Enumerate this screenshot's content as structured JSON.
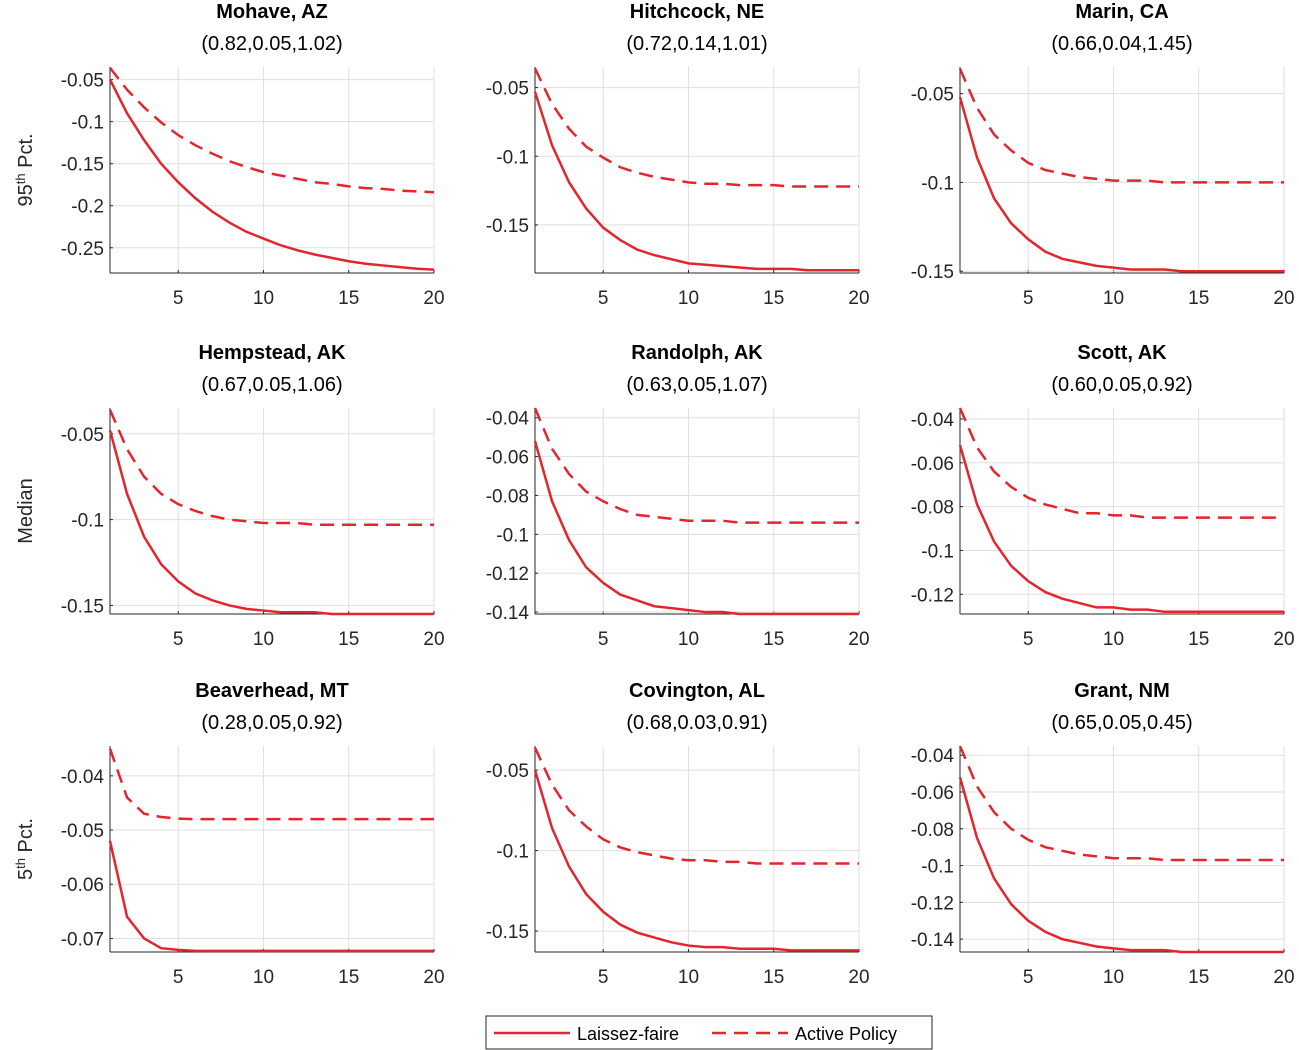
{
  "chart_data": [
    {
      "type": "line",
      "title": "Mohave, AZ",
      "subtitle": "(0.82,0.05,1.02)",
      "ylabel": [
        "95",
        "th",
        " Pct."
      ],
      "x": [
        1,
        2,
        3,
        4,
        5,
        6,
        7,
        8,
        9,
        10,
        11,
        12,
        13,
        14,
        15,
        16,
        17,
        18,
        19,
        20
      ],
      "xlim": [
        1,
        20
      ],
      "xticks": [
        5,
        10,
        15,
        20
      ],
      "ylim": [
        -0.28,
        -0.035
      ],
      "yticks": [
        -0.25,
        -0.2,
        -0.15,
        -0.1,
        -0.05
      ],
      "grid": true,
      "series": [
        {
          "color": "#e3262d",
          "line_style": "solid",
          "values": [
            -0.05,
            -0.09,
            -0.122,
            -0.15,
            -0.172,
            -0.191,
            -0.207,
            -0.22,
            -0.231,
            -0.239,
            -0.247,
            -0.253,
            -0.258,
            -0.262,
            -0.266,
            -0.269,
            -0.271,
            -0.273,
            -0.275,
            -0.276
          ]
        },
        {
          "color": "#e3262d",
          "line_style": "dashed",
          "values": [
            -0.036,
            -0.062,
            -0.083,
            -0.101,
            -0.116,
            -0.128,
            -0.138,
            -0.147,
            -0.154,
            -0.16,
            -0.164,
            -0.168,
            -0.172,
            -0.174,
            -0.177,
            -0.179,
            -0.18,
            -0.182,
            -0.183,
            -0.184
          ]
        }
      ]
    },
    {
      "type": "line",
      "title": "Hitchcock, NE",
      "subtitle": "(0.72,0.14,1.01)",
      "x": [
        1,
        2,
        3,
        4,
        5,
        6,
        7,
        8,
        9,
        10,
        11,
        12,
        13,
        14,
        15,
        16,
        17,
        18,
        19,
        20
      ],
      "xlim": [
        1,
        20
      ],
      "xticks": [
        5,
        10,
        15,
        20
      ],
      "ylim": [
        -0.185,
        -0.035
      ],
      "yticks": [
        -0.15,
        -0.1,
        -0.05
      ],
      "grid": true,
      "series": [
        {
          "color": "#e3262d",
          "line_style": "solid",
          "values": [
            -0.053,
            -0.092,
            -0.119,
            -0.138,
            -0.152,
            -0.161,
            -0.168,
            -0.172,
            -0.175,
            -0.178,
            -0.179,
            -0.18,
            -0.181,
            -0.182,
            -0.182,
            -0.182,
            -0.183,
            -0.183,
            -0.183,
            -0.183
          ]
        },
        {
          "color": "#e3262d",
          "line_style": "dashed",
          "values": [
            -0.036,
            -0.062,
            -0.08,
            -0.093,
            -0.101,
            -0.108,
            -0.112,
            -0.115,
            -0.117,
            -0.119,
            -0.12,
            -0.12,
            -0.121,
            -0.121,
            -0.121,
            -0.122,
            -0.122,
            -0.122,
            -0.122,
            -0.122
          ]
        }
      ]
    },
    {
      "type": "line",
      "title": "Marin, CA",
      "subtitle": "(0.66,0.04,1.45)",
      "x": [
        1,
        2,
        3,
        4,
        5,
        6,
        7,
        8,
        9,
        10,
        11,
        12,
        13,
        14,
        15,
        16,
        17,
        18,
        19,
        20
      ],
      "xlim": [
        1,
        20
      ],
      "xticks": [
        5,
        10,
        15,
        20
      ],
      "ylim": [
        -0.151,
        -0.035
      ],
      "yticks": [
        -0.15,
        -0.1,
        -0.05
      ],
      "grid": true,
      "series": [
        {
          "color": "#e3262d",
          "line_style": "solid",
          "values": [
            -0.052,
            -0.086,
            -0.109,
            -0.123,
            -0.132,
            -0.139,
            -0.143,
            -0.145,
            -0.147,
            -0.148,
            -0.149,
            -0.149,
            -0.149,
            -0.15,
            -0.15,
            -0.15,
            -0.15,
            -0.15,
            -0.15,
            -0.15
          ]
        },
        {
          "color": "#e3262d",
          "line_style": "dashed",
          "values": [
            -0.036,
            -0.058,
            -0.073,
            -0.082,
            -0.089,
            -0.093,
            -0.095,
            -0.097,
            -0.098,
            -0.099,
            -0.099,
            -0.099,
            -0.1,
            -0.1,
            -0.1,
            -0.1,
            -0.1,
            -0.1,
            -0.1,
            -0.1
          ]
        }
      ]
    },
    {
      "type": "line",
      "title": "Hempstead, AK",
      "subtitle": "(0.67,0.05,1.06)",
      "ylabel": [
        "Median"
      ],
      "x": [
        1,
        2,
        3,
        4,
        5,
        6,
        7,
        8,
        9,
        10,
        11,
        12,
        13,
        14,
        15,
        16,
        17,
        18,
        19,
        20
      ],
      "xlim": [
        1,
        20
      ],
      "xticks": [
        5,
        10,
        15,
        20
      ],
      "ylim": [
        -0.155,
        -0.035
      ],
      "yticks": [
        -0.15,
        -0.1,
        -0.05
      ],
      "grid": true,
      "series": [
        {
          "color": "#e3262d",
          "line_style": "solid",
          "values": [
            -0.048,
            -0.085,
            -0.11,
            -0.126,
            -0.136,
            -0.143,
            -0.147,
            -0.15,
            -0.152,
            -0.153,
            -0.154,
            -0.154,
            -0.154,
            -0.155,
            -0.155,
            -0.155,
            -0.155,
            -0.155,
            -0.155,
            -0.155
          ]
        },
        {
          "color": "#e3262d",
          "line_style": "dashed",
          "values": [
            -0.036,
            -0.059,
            -0.075,
            -0.085,
            -0.091,
            -0.095,
            -0.098,
            -0.1,
            -0.101,
            -0.102,
            -0.102,
            -0.102,
            -0.103,
            -0.103,
            -0.103,
            -0.103,
            -0.103,
            -0.103,
            -0.103,
            -0.103
          ]
        }
      ]
    },
    {
      "type": "line",
      "title": "Randolph, AK",
      "subtitle": "(0.63,0.05,1.07)",
      "x": [
        1,
        2,
        3,
        4,
        5,
        6,
        7,
        8,
        9,
        10,
        11,
        12,
        13,
        14,
        15,
        16,
        17,
        18,
        19,
        20
      ],
      "xlim": [
        1,
        20
      ],
      "xticks": [
        5,
        10,
        15,
        20
      ],
      "ylim": [
        -0.141,
        -0.035
      ],
      "yticks": [
        -0.14,
        -0.12,
        -0.1,
        -0.08,
        -0.06,
        -0.04
      ],
      "grid": true,
      "series": [
        {
          "color": "#e3262d",
          "line_style": "solid",
          "values": [
            -0.052,
            -0.083,
            -0.103,
            -0.117,
            -0.125,
            -0.131,
            -0.134,
            -0.137,
            -0.138,
            -0.139,
            -0.14,
            -0.14,
            -0.141,
            -0.141,
            -0.141,
            -0.141,
            -0.141,
            -0.141,
            -0.141,
            -0.141
          ]
        },
        {
          "color": "#e3262d",
          "line_style": "dashed",
          "values": [
            -0.035,
            -0.056,
            -0.069,
            -0.078,
            -0.083,
            -0.087,
            -0.09,
            -0.091,
            -0.092,
            -0.093,
            -0.093,
            -0.093,
            -0.094,
            -0.094,
            -0.094,
            -0.094,
            -0.094,
            -0.094,
            -0.094,
            -0.094
          ]
        }
      ]
    },
    {
      "type": "line",
      "title": "Scott, AK",
      "subtitle": "(0.60,0.05,0.92)",
      "x": [
        1,
        2,
        3,
        4,
        5,
        6,
        7,
        8,
        9,
        10,
        11,
        12,
        13,
        14,
        15,
        16,
        17,
        18,
        19,
        20
      ],
      "xlim": [
        1,
        20
      ],
      "xticks": [
        5,
        10,
        15,
        20
      ],
      "ylim": [
        -0.129,
        -0.035
      ],
      "yticks": [
        -0.12,
        -0.1,
        -0.08,
        -0.06,
        -0.04
      ],
      "grid": true,
      "series": [
        {
          "color": "#e3262d",
          "line_style": "solid",
          "values": [
            -0.052,
            -0.079,
            -0.096,
            -0.107,
            -0.114,
            -0.119,
            -0.122,
            -0.124,
            -0.126,
            -0.126,
            -0.127,
            -0.127,
            -0.128,
            -0.128,
            -0.128,
            -0.128,
            -0.128,
            -0.128,
            -0.128,
            -0.128
          ]
        },
        {
          "color": "#e3262d",
          "line_style": "dashed",
          "values": [
            -0.035,
            -0.053,
            -0.064,
            -0.071,
            -0.076,
            -0.079,
            -0.081,
            -0.083,
            -0.083,
            -0.084,
            -0.084,
            -0.085,
            -0.085,
            -0.085,
            -0.085,
            -0.085,
            -0.085,
            -0.085,
            -0.085,
            -0.085
          ]
        }
      ]
    },
    {
      "type": "line",
      "title": "Beaverhead, MT",
      "subtitle": "(0.28,0.05,0.92)",
      "ylabel": [
        "5",
        "th",
        " Pct."
      ],
      "x": [
        1,
        2,
        3,
        4,
        5,
        6,
        7,
        8,
        9,
        10,
        11,
        12,
        13,
        14,
        15,
        16,
        17,
        18,
        19,
        20
      ],
      "xlim": [
        1,
        20
      ],
      "xticks": [
        5,
        10,
        15,
        20
      ],
      "ylim": [
        -0.0725,
        -0.0345
      ],
      "yticks": [
        -0.07,
        -0.06,
        -0.05,
        -0.04
      ],
      "grid": true,
      "series": [
        {
          "color": "#e3262d",
          "line_style": "solid",
          "values": [
            -0.052,
            -0.066,
            -0.07,
            -0.0718,
            -0.0721,
            -0.0723,
            -0.0723,
            -0.0723,
            -0.0723,
            -0.0723,
            -0.0723,
            -0.0723,
            -0.0723,
            -0.0723,
            -0.0723,
            -0.0723,
            -0.0723,
            -0.0723,
            -0.0723,
            -0.0723
          ]
        },
        {
          "color": "#e3262d",
          "line_style": "dashed",
          "values": [
            -0.035,
            -0.044,
            -0.047,
            -0.0476,
            -0.0479,
            -0.048,
            -0.048,
            -0.048,
            -0.048,
            -0.048,
            -0.048,
            -0.048,
            -0.048,
            -0.048,
            -0.048,
            -0.048,
            -0.048,
            -0.048,
            -0.048,
            -0.048
          ]
        }
      ]
    },
    {
      "type": "line",
      "title": "Covington, AL",
      "subtitle": "(0.68,0.03,0.91)",
      "x": [
        1,
        2,
        3,
        4,
        5,
        6,
        7,
        8,
        9,
        10,
        11,
        12,
        13,
        14,
        15,
        16,
        17,
        18,
        19,
        20
      ],
      "xlim": [
        1,
        20
      ],
      "xticks": [
        5,
        10,
        15,
        20
      ],
      "ylim": [
        -0.163,
        -0.035
      ],
      "yticks": [
        -0.15,
        -0.1,
        -0.05
      ],
      "grid": true,
      "series": [
        {
          "color": "#e3262d",
          "line_style": "solid",
          "values": [
            -0.05,
            -0.086,
            -0.11,
            -0.127,
            -0.138,
            -0.146,
            -0.151,
            -0.154,
            -0.157,
            -0.159,
            -0.16,
            -0.16,
            -0.161,
            -0.161,
            -0.161,
            -0.162,
            -0.162,
            -0.162,
            -0.162,
            -0.162
          ]
        },
        {
          "color": "#e3262d",
          "line_style": "dashed",
          "values": [
            -0.036,
            -0.059,
            -0.075,
            -0.085,
            -0.093,
            -0.098,
            -0.101,
            -0.103,
            -0.105,
            -0.106,
            -0.106,
            -0.107,
            -0.107,
            -0.108,
            -0.108,
            -0.108,
            -0.108,
            -0.108,
            -0.108,
            -0.108
          ]
        }
      ]
    },
    {
      "type": "line",
      "title": "Grant, NM",
      "subtitle": "(0.65,0.05,0.45)",
      "x": [
        1,
        2,
        3,
        4,
        5,
        6,
        7,
        8,
        9,
        10,
        11,
        12,
        13,
        14,
        15,
        16,
        17,
        18,
        19,
        20
      ],
      "xlim": [
        1,
        20
      ],
      "xticks": [
        5,
        10,
        15,
        20
      ],
      "ylim": [
        -0.147,
        -0.035
      ],
      "yticks": [
        -0.14,
        -0.12,
        -0.1,
        -0.08,
        -0.06,
        -0.04
      ],
      "grid": true,
      "series": [
        {
          "color": "#e3262d",
          "line_style": "solid",
          "values": [
            -0.052,
            -0.085,
            -0.107,
            -0.121,
            -0.13,
            -0.136,
            -0.14,
            -0.142,
            -0.144,
            -0.145,
            -0.146,
            -0.146,
            -0.146,
            -0.147,
            -0.147,
            -0.147,
            -0.147,
            -0.147,
            -0.147,
            -0.147
          ]
        },
        {
          "color": "#e3262d",
          "line_style": "dashed",
          "values": [
            -0.035,
            -0.057,
            -0.071,
            -0.08,
            -0.086,
            -0.09,
            -0.092,
            -0.094,
            -0.095,
            -0.096,
            -0.096,
            -0.096,
            -0.097,
            -0.097,
            -0.097,
            -0.097,
            -0.097,
            -0.097,
            -0.097,
            -0.097
          ]
        }
      ]
    }
  ],
  "legend": [
    "Laissez-faire",
    "Active Policy"
  ]
}
